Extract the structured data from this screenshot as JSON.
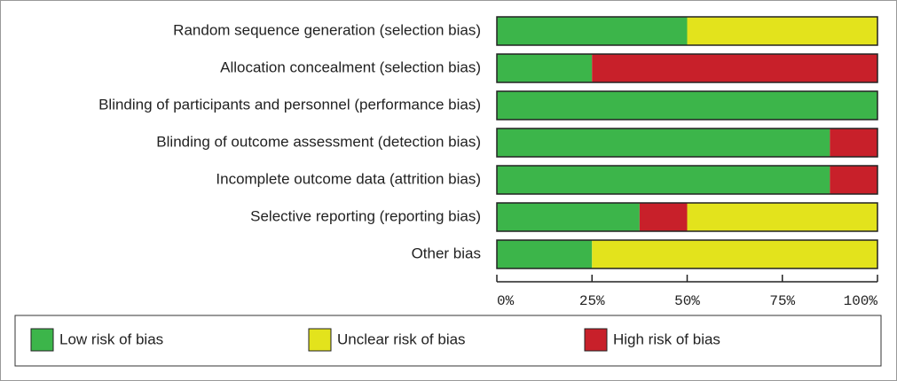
{
  "chart_data": {
    "type": "bar",
    "orientation": "horizontal",
    "stacked": true,
    "categories": [
      "Random sequence generation (selection bias)",
      "Allocation concealment (selection bias)",
      "Blinding of participants and personnel (performance bias)",
      "Blinding of outcome assessment (detection bias)",
      "Incomplete outcome data (attrition bias)",
      "Selective reporting (reporting bias)",
      "Other bias"
    ],
    "series": [
      {
        "name": "Low risk of bias",
        "color": "#3cb54a",
        "values": [
          50,
          25,
          100,
          87.5,
          87.5,
          37.5,
          25
        ]
      },
      {
        "name": "Unclear risk of bias",
        "color": "#e3e31c",
        "values": [
          50,
          0,
          0,
          0,
          0,
          50,
          75
        ]
      },
      {
        "name": "High risk of bias",
        "color": "#c8202a",
        "values": [
          0,
          75,
          0,
          12.5,
          12.5,
          12.5,
          0
        ]
      }
    ],
    "series_stack_order": [
      0,
      2,
      1
    ],
    "xlim": [
      0,
      100
    ],
    "xticks": [
      {
        "value": 0,
        "label": "0%"
      },
      {
        "value": 25,
        "label": "25%"
      },
      {
        "value": 50,
        "label": "50%"
      },
      {
        "value": 75,
        "label": "75%"
      },
      {
        "value": 100,
        "label": "100%"
      }
    ],
    "legend": "bottom"
  }
}
